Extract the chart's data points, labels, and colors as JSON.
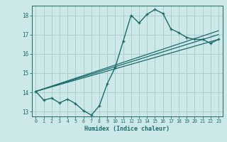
{
  "xlabel": "Humidex (Indice chaleur)",
  "bg_color": "#cde8e8",
  "grid_color": "#aacfcf",
  "line_color": "#1a6b6b",
  "xlim": [
    -0.5,
    23.5
  ],
  "ylim": [
    12.75,
    18.5
  ],
  "yticks": [
    13,
    14,
    15,
    16,
    17,
    18
  ],
  "xticks": [
    0,
    1,
    2,
    3,
    4,
    5,
    6,
    7,
    8,
    9,
    10,
    11,
    12,
    13,
    14,
    15,
    16,
    17,
    18,
    19,
    20,
    21,
    22,
    23
  ],
  "curve_x": [
    0,
    1,
    2,
    3,
    4,
    5,
    6,
    7,
    8,
    9,
    10,
    11,
    12,
    13,
    14,
    15,
    16,
    17,
    18,
    19,
    20,
    21,
    22,
    23
  ],
  "curve_y": [
    14.05,
    13.6,
    13.7,
    13.45,
    13.65,
    13.42,
    13.05,
    12.82,
    13.3,
    14.45,
    15.3,
    16.65,
    18.0,
    17.6,
    18.05,
    18.3,
    18.1,
    17.3,
    17.1,
    16.85,
    16.75,
    16.75,
    16.55,
    16.75
  ],
  "line1_x": [
    0,
    23
  ],
  "line1_y": [
    14.05,
    16.75
  ],
  "line2_x": [
    0,
    23
  ],
  "line2_y": [
    14.05,
    17.0
  ],
  "line3_x": [
    0,
    23
  ],
  "line3_y": [
    14.05,
    17.2
  ]
}
